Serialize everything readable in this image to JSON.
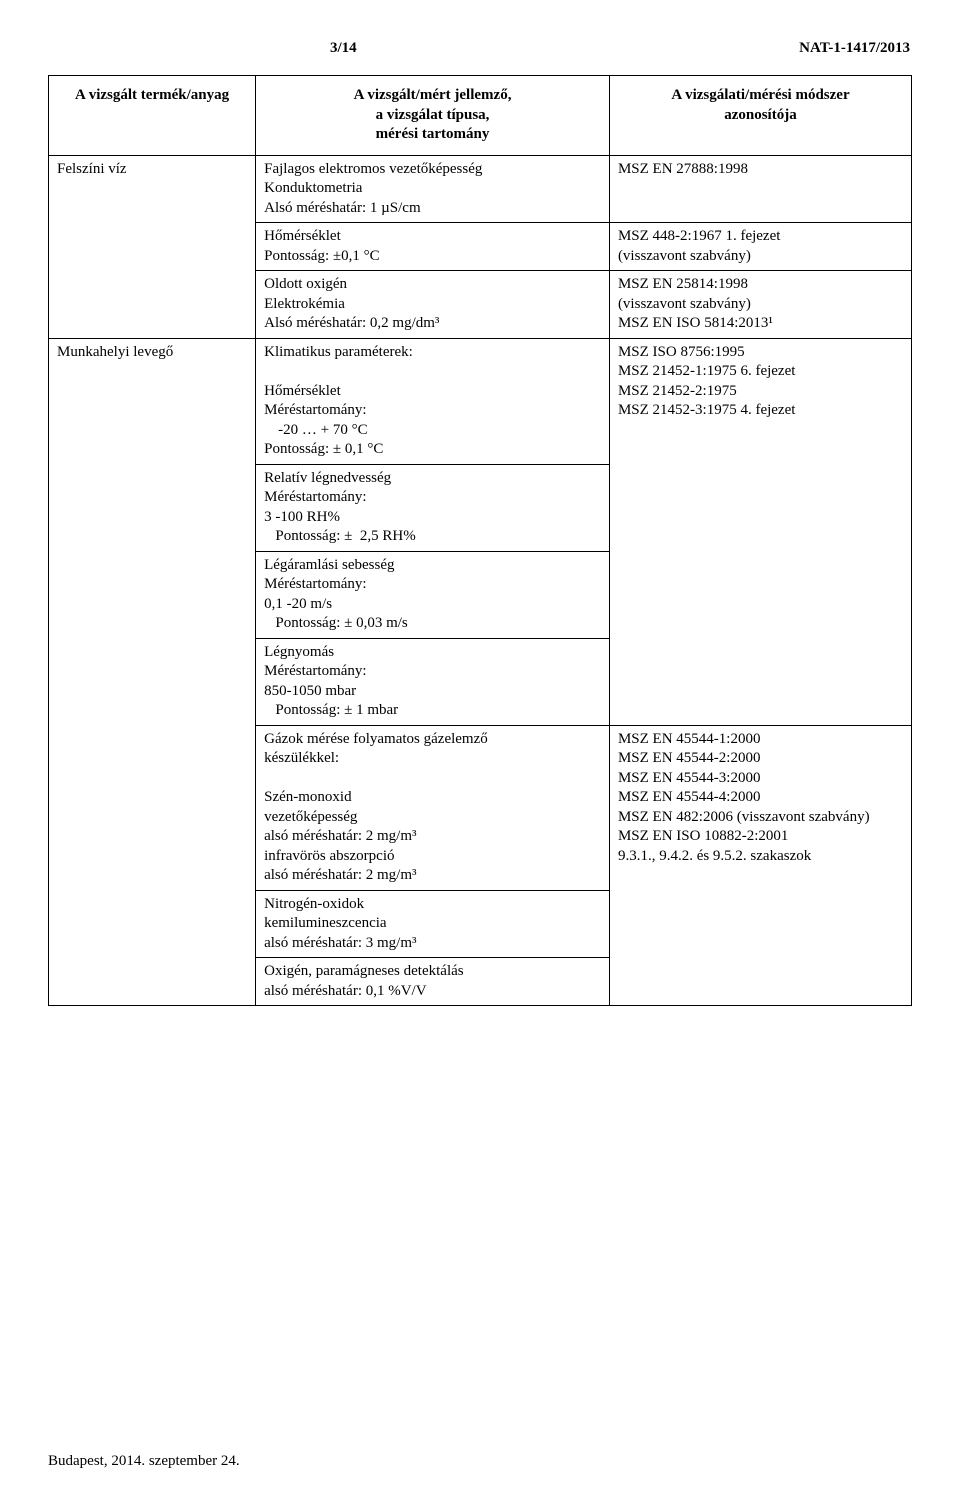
{
  "header": {
    "page_number": "3/14",
    "doc_id": "NAT-1-1417/2013"
  },
  "table": {
    "headers": {
      "col1": "A vizsgált termék/anyag",
      "col2_line1": "A vizsgált/mért jellemző,",
      "col2_line2": "a vizsgálat típusa,",
      "col2_line3": "mérési tartomány",
      "col3_line1": "A vizsgálati/mérési módszer",
      "col3_line2": "azonosítója"
    },
    "rows": [
      {
        "product": "Felszíni víz",
        "feature": "Fajlagos elektromos vezetőképesség\nKonduktometria\nAlsó méréshatár: 1 µS/cm",
        "method": "MSZ EN 27888:1998"
      },
      {
        "product": "",
        "feature": "Hőmérséklet\nPontosság: ±0,1 °C",
        "method": "MSZ 448-2:1967 1. fejezet\n(visszavont szabvány)"
      },
      {
        "product": "",
        "feature": "Oldott oxigén\nElektrokémia\nAlsó méréshatár: 0,2 mg/dm³",
        "method": "MSZ EN 25814:1998\n(visszavont szabvány)\nMSZ EN ISO 5814:2013¹"
      },
      {
        "product": "Munkahelyi levegő",
        "feature_lines": [
          "Klimatikus paraméterek:",
          "",
          "Hőmérséklet",
          "Méréstartomány:",
          "  -20 … + 70 °C",
          "Pontosság: ± 0,1 °C"
        ],
        "method": "MSZ ISO 8756:1995\nMSZ 21452-1:1975 6. fejezet\nMSZ 21452-2:1975\nMSZ 21452-3:1975 4. fejezet"
      },
      {
        "product": "",
        "feature_lines": [
          "Relatív légnedvesség",
          "Méréstartomány:",
          "3 -100 RH%",
          "   Pontosság: ±  2,5 RH%"
        ],
        "method": ""
      },
      {
        "product": "",
        "feature_lines": [
          "Légáramlási sebesség",
          "Méréstartomány:",
          "0,1 -20 m/s",
          "   Pontosság: ± 0,03 m/s"
        ],
        "method": ""
      },
      {
        "product": "",
        "feature_lines": [
          "Légnyomás",
          "Méréstartomány:",
          "850-1050 mbar",
          "   Pontosság: ± 1 mbar"
        ],
        "method": ""
      },
      {
        "product": "",
        "feature_lines": [
          "Gázok mérése folyamatos gázelemző",
          "készülékkel:",
          "",
          "Szén-monoxid",
          "vezetőképesség",
          "alsó méréshatár: 2 mg/m³",
          "infravörös abszorpció",
          "alsó méréshatár: 2 mg/m³"
        ],
        "method": "MSZ EN 45544-1:2000\nMSZ EN 45544-2:2000\nMSZ EN 45544-3:2000\nMSZ EN 45544-4:2000\nMSZ EN 482:2006 (visszavont szabvány)\nMSZ EN ISO 10882-2:2001\n9.3.1., 9.4.2. és 9.5.2. szakaszok"
      },
      {
        "product": "",
        "feature_lines": [
          "Nitrogén-oxidok",
          "kemilumineszcencia",
          "alsó méréshatár: 3 mg/m³"
        ],
        "method": ""
      },
      {
        "product": "",
        "feature_lines": [
          "Oxigén, paramágneses detektálás",
          "alsó méréshatár: 0,1 %V/V"
        ],
        "method": ""
      }
    ]
  },
  "footer": "Budapest, 2014. szeptember 24."
}
